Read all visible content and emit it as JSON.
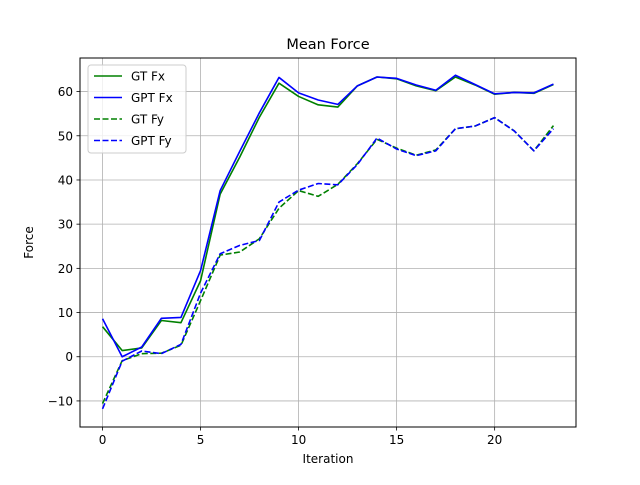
{
  "chart_data": {
    "type": "line",
    "title": "Mean Force",
    "xlabel": "Iteration",
    "ylabel": "Force",
    "xlim": [
      -1.15,
      24.15
    ],
    "ylim": [
      -15.9,
      67.6
    ],
    "xticks": [
      0,
      5,
      10,
      15,
      20
    ],
    "yticks": [
      -10,
      0,
      10,
      20,
      30,
      40,
      50,
      60
    ],
    "grid": true,
    "legend_position": "top-left",
    "x": [
      0,
      1,
      2,
      3,
      4,
      5,
      6,
      7,
      8,
      9,
      10,
      11,
      12,
      13,
      14,
      15,
      16,
      17,
      18,
      19,
      20,
      21,
      22,
      23
    ],
    "series": [
      {
        "name": "GT Fx",
        "color": "#008000",
        "dash": "solid",
        "values": [
          6.8,
          1.4,
          2.0,
          8.2,
          7.7,
          17.2,
          36.8,
          45.2,
          54.2,
          61.9,
          58.9,
          57.0,
          56.5,
          61.3,
          63.3,
          62.9,
          61.3,
          60.2,
          63.3,
          61.5,
          59.4,
          59.8,
          59.6,
          61.6
        ]
      },
      {
        "name": "GPT Fx",
        "color": "#0000ff",
        "dash": "solid",
        "values": [
          8.6,
          0.0,
          2.2,
          8.7,
          8.9,
          19.5,
          37.6,
          46.5,
          55.2,
          63.2,
          59.7,
          58.1,
          57.1,
          61.3,
          63.3,
          63.0,
          61.5,
          60.3,
          63.7,
          61.6,
          59.5,
          59.8,
          59.7,
          61.7
        ]
      },
      {
        "name": "GT Fy",
        "color": "#008000",
        "dash": "dashed",
        "values": [
          -10.6,
          -0.9,
          0.7,
          0.8,
          2.6,
          12.7,
          23.0,
          23.7,
          26.7,
          33.6,
          37.6,
          36.3,
          39.0,
          43.7,
          49.2,
          47.2,
          45.6,
          46.8,
          51.6,
          52.2,
          54.1,
          51.1,
          46.6,
          52.3
        ]
      },
      {
        "name": "GPT Fy",
        "color": "#0000ff",
        "dash": "dashed",
        "values": [
          -11.8,
          -1.0,
          1.3,
          0.7,
          2.8,
          14.4,
          23.3,
          25.2,
          26.3,
          35.0,
          37.7,
          39.2,
          38.9,
          43.5,
          49.5,
          47.0,
          45.5,
          46.6,
          51.6,
          52.2,
          54.1,
          51.1,
          46.6,
          51.6
        ]
      }
    ]
  }
}
